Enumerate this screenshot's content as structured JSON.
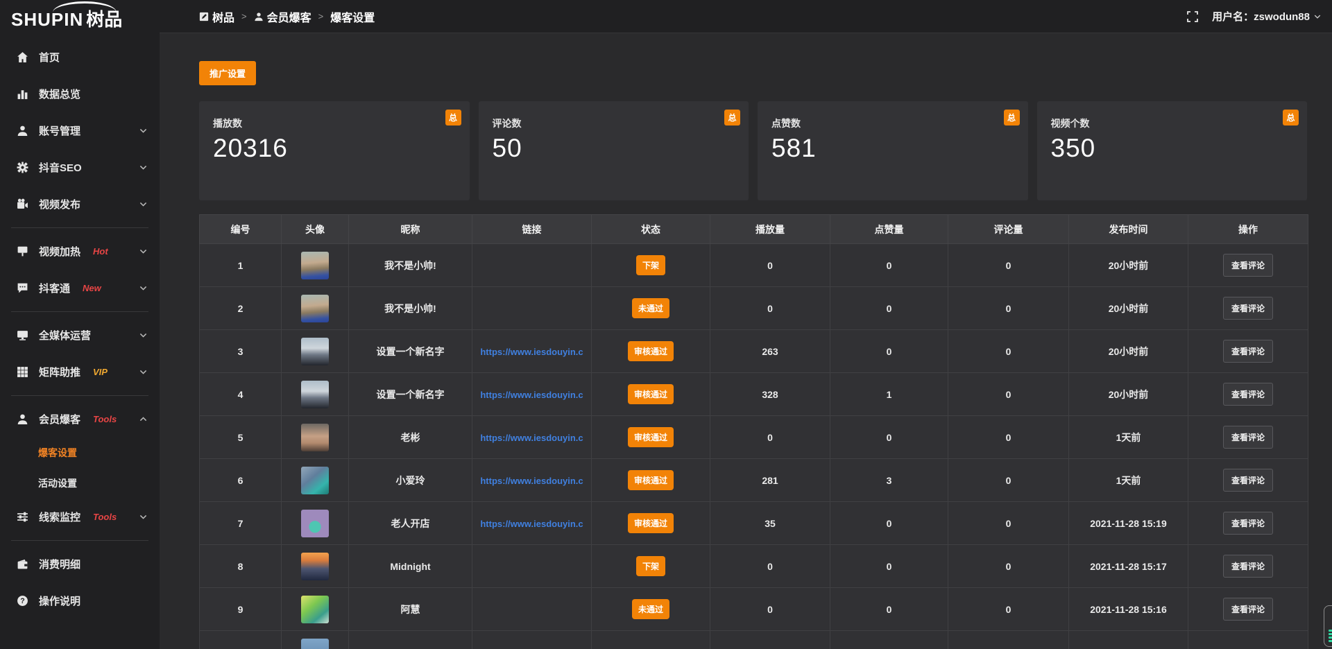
{
  "logo": {
    "text_en": "SHUPIN",
    "text_cn": "树品"
  },
  "topbar": {
    "breadcrumb": [
      {
        "icon": "edit-square-icon",
        "label": "树品"
      },
      {
        "icon": "user-icon",
        "label": "会员爆客"
      },
      {
        "icon": null,
        "label": "爆客设置"
      }
    ],
    "separator": ">",
    "username": "用户名：zswodun88"
  },
  "sidebar": {
    "items": [
      {
        "icon": "home-icon",
        "label": "首页"
      },
      {
        "icon": "bar-chart-icon",
        "label": "数据总览"
      },
      {
        "icon": "user-icon",
        "label": "账号管理",
        "chevron": "down"
      },
      {
        "icon": "gear-icon",
        "label": "抖音SEO",
        "chevron": "down"
      },
      {
        "icon": "video-camera-icon",
        "label": "视频发布",
        "chevron": "down",
        "divider_after": true
      },
      {
        "icon": "heat-sign-icon",
        "label": "视频加热",
        "badge": "Hot",
        "badge_color": "red",
        "chevron": "down"
      },
      {
        "icon": "chat-icon",
        "label": "抖客通",
        "badge": "New",
        "badge_color": "red",
        "chevron": "down",
        "divider_after": true
      },
      {
        "icon": "monitor-icon",
        "label": "全媒体运营",
        "chevron": "down"
      },
      {
        "icon": "grid-icon",
        "label": "矩阵助推",
        "badge": "VIP",
        "badge_color": "gold",
        "chevron": "down",
        "divider_after": true
      },
      {
        "icon": "user-icon",
        "label": "会员爆客",
        "badge": "Tools",
        "badge_color": "red",
        "chevron": "up",
        "children": [
          {
            "label": "爆客设置",
            "active": true
          },
          {
            "label": "活动设置",
            "active": false
          }
        ]
      },
      {
        "icon": "sliders-icon",
        "label": "线索监控",
        "badge": "Tools",
        "badge_color": "red",
        "chevron": "down",
        "divider_after": true
      },
      {
        "icon": "wallet-icon",
        "label": "消费明细"
      },
      {
        "icon": "question-icon",
        "label": "操作说明"
      }
    ]
  },
  "main": {
    "promo_button": "推广设置",
    "stats": [
      {
        "label": "播放数",
        "value": "20316",
        "badge": "总"
      },
      {
        "label": "评论数",
        "value": "50",
        "badge": "总"
      },
      {
        "label": "点赞数",
        "value": "581",
        "badge": "总"
      },
      {
        "label": "视频个数",
        "value": "350",
        "badge": "总"
      }
    ],
    "table": {
      "columns": [
        "编号",
        "头像",
        "昵称",
        "链接",
        "状态",
        "播放量",
        "点赞量",
        "评论量",
        "发布时间",
        "操作"
      ],
      "action_label": "查看评论",
      "rows": [
        {
          "id": "1",
          "avatar": "boy",
          "nickname": "我不是小帅!",
          "link": "",
          "status": "下架",
          "plays": "0",
          "likes": "0",
          "comments": "0",
          "time": "20小时前",
          "action": true
        },
        {
          "id": "2",
          "avatar": "boy",
          "nickname": "我不是小帅!",
          "link": "",
          "status": "未通过",
          "plays": "0",
          "likes": "0",
          "comments": "0",
          "time": "20小时前",
          "action": true
        },
        {
          "id": "3",
          "avatar": "sky",
          "nickname": "设置一个新名字",
          "link": "https://www.iesdouyin.c",
          "status": "审核通过",
          "plays": "263",
          "likes": "0",
          "comments": "0",
          "time": "20小时前",
          "action": true
        },
        {
          "id": "4",
          "avatar": "sky",
          "nickname": "设置一个新名字",
          "link": "https://www.iesdouyin.c",
          "status": "审核通过",
          "plays": "328",
          "likes": "1",
          "comments": "0",
          "time": "20小时前",
          "action": true
        },
        {
          "id": "5",
          "avatar": "man",
          "nickname": "老彬",
          "link": "https://www.iesdouyin.c",
          "status": "审核通过",
          "plays": "0",
          "likes": "0",
          "comments": "0",
          "time": "1天前",
          "action": true
        },
        {
          "id": "6",
          "avatar": "teal",
          "nickname": "小爱玲",
          "link": "https://www.iesdouyin.c",
          "status": "审核通过",
          "plays": "281",
          "likes": "3",
          "comments": "0",
          "time": "1天前",
          "action": true
        },
        {
          "id": "7",
          "avatar": "purple",
          "nickname": "老人开店",
          "link": "https://www.iesdouyin.c",
          "status": "审核通过",
          "plays": "35",
          "likes": "0",
          "comments": "0",
          "time": "2021-11-28 15:19",
          "action": true
        },
        {
          "id": "8",
          "avatar": "sunset",
          "nickname": "Midnight",
          "link": "",
          "status": "下架",
          "plays": "0",
          "likes": "0",
          "comments": "0",
          "time": "2021-11-28 15:17",
          "action": true
        },
        {
          "id": "9",
          "avatar": "green",
          "nickname": "阿慧",
          "link": "",
          "status": "未通过",
          "plays": "0",
          "likes": "0",
          "comments": "0",
          "time": "2021-11-28 15:16",
          "action": true
        },
        {
          "id": "",
          "avatar": "bluepart",
          "nickname": "",
          "link": "",
          "status": "",
          "plays": "",
          "likes": "",
          "comments": "",
          "time": "",
          "action": false
        }
      ]
    }
  },
  "colors": {
    "accent_orange": "#f28307",
    "link_blue": "#4080e0",
    "badge_red": "#e84545",
    "badge_gold": "#f0a830"
  }
}
